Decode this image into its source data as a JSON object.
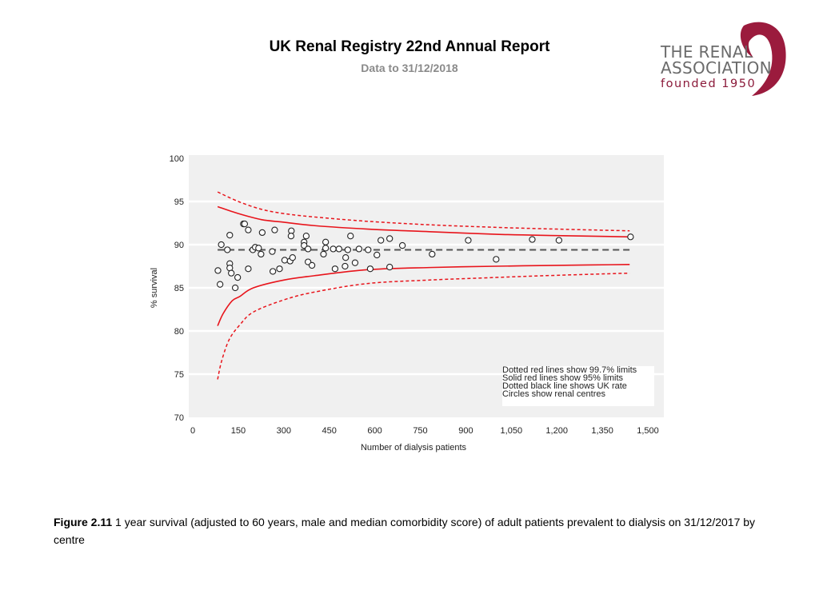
{
  "header": {
    "title": "UK Renal Registry 22nd Annual Report",
    "subtitle": "Data to 31/12/2018"
  },
  "logo": {
    "line1": "THE RENAL",
    "line2": "ASSOCIATION",
    "line3": "founded 1950",
    "accent_color": "#9b1b3d",
    "text_color": "#6b6b6b"
  },
  "caption": {
    "label": "Figure 2.11",
    "text": " 1 year survival (adjusted to 60 years, male and median comorbidity score) of adult patients prevalent to dialysis on 31/12/2017 by centre"
  },
  "chart_data": {
    "type": "scatter",
    "title": "",
    "xlabel": "Number  of dialysis patients",
    "ylabel": "% survival",
    "xlim": [
      0,
      1500
    ],
    "ylim": [
      70,
      100
    ],
    "x_ticks": [
      0,
      150,
      300,
      450,
      600,
      750,
      900,
      1050,
      1200,
      1350,
      1500
    ],
    "x_tick_labels": [
      "0",
      "150",
      "300",
      "450",
      "600",
      "750",
      "900",
      "1,050",
      "1,200",
      "1,350",
      "1,500"
    ],
    "y_ticks": [
      70,
      75,
      80,
      85,
      90,
      95,
      100
    ],
    "y_tick_labels": [
      "70",
      "75",
      "80",
      "85",
      "90",
      "95",
      "100"
    ],
    "grid": "horizontal",
    "legend_placement": "bottom-right",
    "legend": [
      "Dotted red lines show 99.7% limits",
      "Solid red lines show 95% limits",
      "Dotted black line shows UK rate",
      "Circles show renal centres"
    ],
    "uk_rate": 89.4,
    "colors": {
      "limits": "#e8141b",
      "uk_rate": "#555555",
      "points": "#222222",
      "plot_bg": "#f0f0f0"
    },
    "series": [
      {
        "name": "Renal centres",
        "kind": "points",
        "points": [
          [
            83,
            87.0
          ],
          [
            90,
            85.4
          ],
          [
            94,
            90.0
          ],
          [
            114,
            89.4
          ],
          [
            122,
            91.1
          ],
          [
            122,
            87.8
          ],
          [
            122,
            87.3
          ],
          [
            127,
            86.7
          ],
          [
            148,
            86.2
          ],
          [
            140,
            85.0
          ],
          [
            167,
            92.4
          ],
          [
            171,
            92.4
          ],
          [
            183,
            91.7
          ],
          [
            183,
            87.2
          ],
          [
            198,
            89.4
          ],
          [
            206,
            89.7
          ],
          [
            217,
            89.6
          ],
          [
            225,
            88.9
          ],
          [
            229,
            91.4
          ],
          [
            270,
            91.7
          ],
          [
            262,
            89.2
          ],
          [
            264,
            86.9
          ],
          [
            286,
            87.2
          ],
          [
            303,
            88.2
          ],
          [
            321,
            88.1
          ],
          [
            329,
            88.5
          ],
          [
            325,
            91.6
          ],
          [
            324,
            91.0
          ],
          [
            374,
            91.0
          ],
          [
            367,
            90.3
          ],
          [
            367,
            89.9
          ],
          [
            380,
            89.5
          ],
          [
            380,
            88.0
          ],
          [
            393,
            87.6
          ],
          [
            438,
            90.3
          ],
          [
            438,
            89.6
          ],
          [
            431,
            88.9
          ],
          [
            463,
            89.5
          ],
          [
            482,
            89.5
          ],
          [
            469,
            87.2
          ],
          [
            520,
            91.0
          ],
          [
            511,
            89.4
          ],
          [
            504,
            88.5
          ],
          [
            502,
            87.5
          ],
          [
            535,
            87.9
          ],
          [
            548,
            89.5
          ],
          [
            578,
            89.4
          ],
          [
            607,
            88.8
          ],
          [
            585,
            87.2
          ],
          [
            620,
            90.5
          ],
          [
            649,
            90.7
          ],
          [
            649,
            87.4
          ],
          [
            691,
            89.9
          ],
          [
            789,
            88.9
          ],
          [
            908,
            90.5
          ],
          [
            1000,
            88.3
          ],
          [
            1119,
            90.6
          ],
          [
            1207,
            90.5
          ],
          [
            1443,
            90.9
          ]
        ]
      },
      {
        "name": "Upper 99.7% limit",
        "kind": "dashed-red",
        "points": [
          [
            82,
            96.1
          ],
          [
            150,
            95.0
          ],
          [
            226,
            94.1
          ],
          [
            300,
            93.6
          ],
          [
            402,
            93.2
          ],
          [
            577,
            92.7
          ],
          [
            780,
            92.3
          ],
          [
            1000,
            92.0
          ],
          [
            1200,
            91.8
          ],
          [
            1440,
            91.6
          ]
        ]
      },
      {
        "name": "Upper 95% limit",
        "kind": "solid-red",
        "points": [
          [
            82,
            94.4
          ],
          [
            150,
            93.6
          ],
          [
            226,
            92.9
          ],
          [
            300,
            92.6
          ],
          [
            402,
            92.2
          ],
          [
            577,
            91.8
          ],
          [
            780,
            91.5
          ],
          [
            1000,
            91.2
          ],
          [
            1200,
            91.05
          ],
          [
            1440,
            90.9
          ]
        ]
      },
      {
        "name": "UK rate",
        "kind": "dashed-black",
        "points": [
          [
            82,
            89.4
          ],
          [
            1440,
            89.4
          ]
        ]
      },
      {
        "name": "Lower 95% limit",
        "kind": "solid-red",
        "points": [
          [
            82,
            80.6
          ],
          [
            100,
            82.0
          ],
          [
            130,
            83.5
          ],
          [
            155,
            84.0
          ],
          [
            200,
            85.0
          ],
          [
            300,
            85.9
          ],
          [
            400,
            86.4
          ],
          [
            577,
            87.1
          ],
          [
            780,
            87.35
          ],
          [
            1000,
            87.5
          ],
          [
            1200,
            87.6
          ],
          [
            1440,
            87.7
          ]
        ]
      },
      {
        "name": "Lower 99.7% limit",
        "kind": "dashed-red",
        "points": [
          [
            82,
            74.4
          ],
          [
            95,
            76.5
          ],
          [
            120,
            79.0
          ],
          [
            155,
            80.7
          ],
          [
            200,
            82.2
          ],
          [
            300,
            83.6
          ],
          [
            400,
            84.5
          ],
          [
            577,
            85.5
          ],
          [
            780,
            85.9
          ],
          [
            1000,
            86.2
          ],
          [
            1200,
            86.45
          ],
          [
            1440,
            86.7
          ]
        ]
      }
    ]
  }
}
